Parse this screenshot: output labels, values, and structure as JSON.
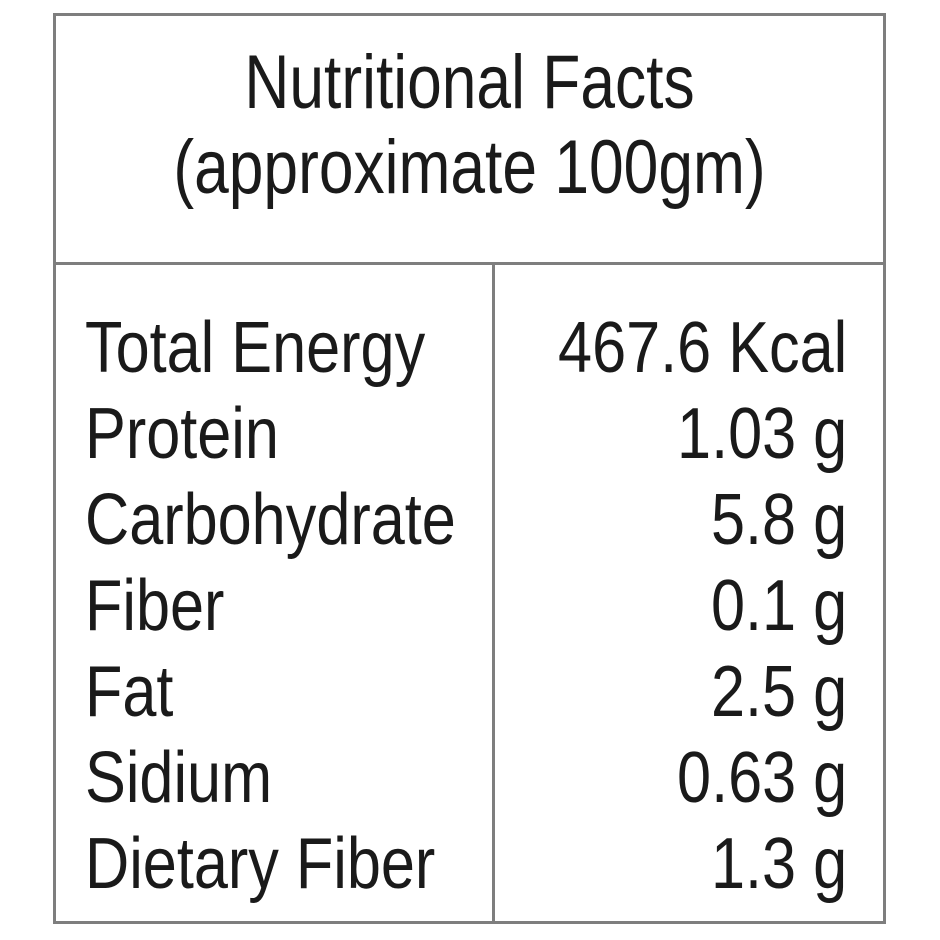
{
  "title": {
    "line1": "Nutritional Facts",
    "line2": "(approximate 100gm)"
  },
  "rows": [
    {
      "name": "Total Energy",
      "value": "467.6 Kcal"
    },
    {
      "name": "Protein",
      "value": "1.03 g"
    },
    {
      "name": "Carbohydrate",
      "value": "5.8 g"
    },
    {
      "name": "Fiber",
      "value": "0.1 g"
    },
    {
      "name": "Fat",
      "value": "2.5 g"
    },
    {
      "name": "Sidium",
      "value": "0.63 g"
    },
    {
      "name": "Dietary Fiber",
      "value": "1.3 g"
    }
  ],
  "colors": {
    "border": "#7e7e7e",
    "text": "#1a1a1a",
    "background": "#ffffff"
  }
}
